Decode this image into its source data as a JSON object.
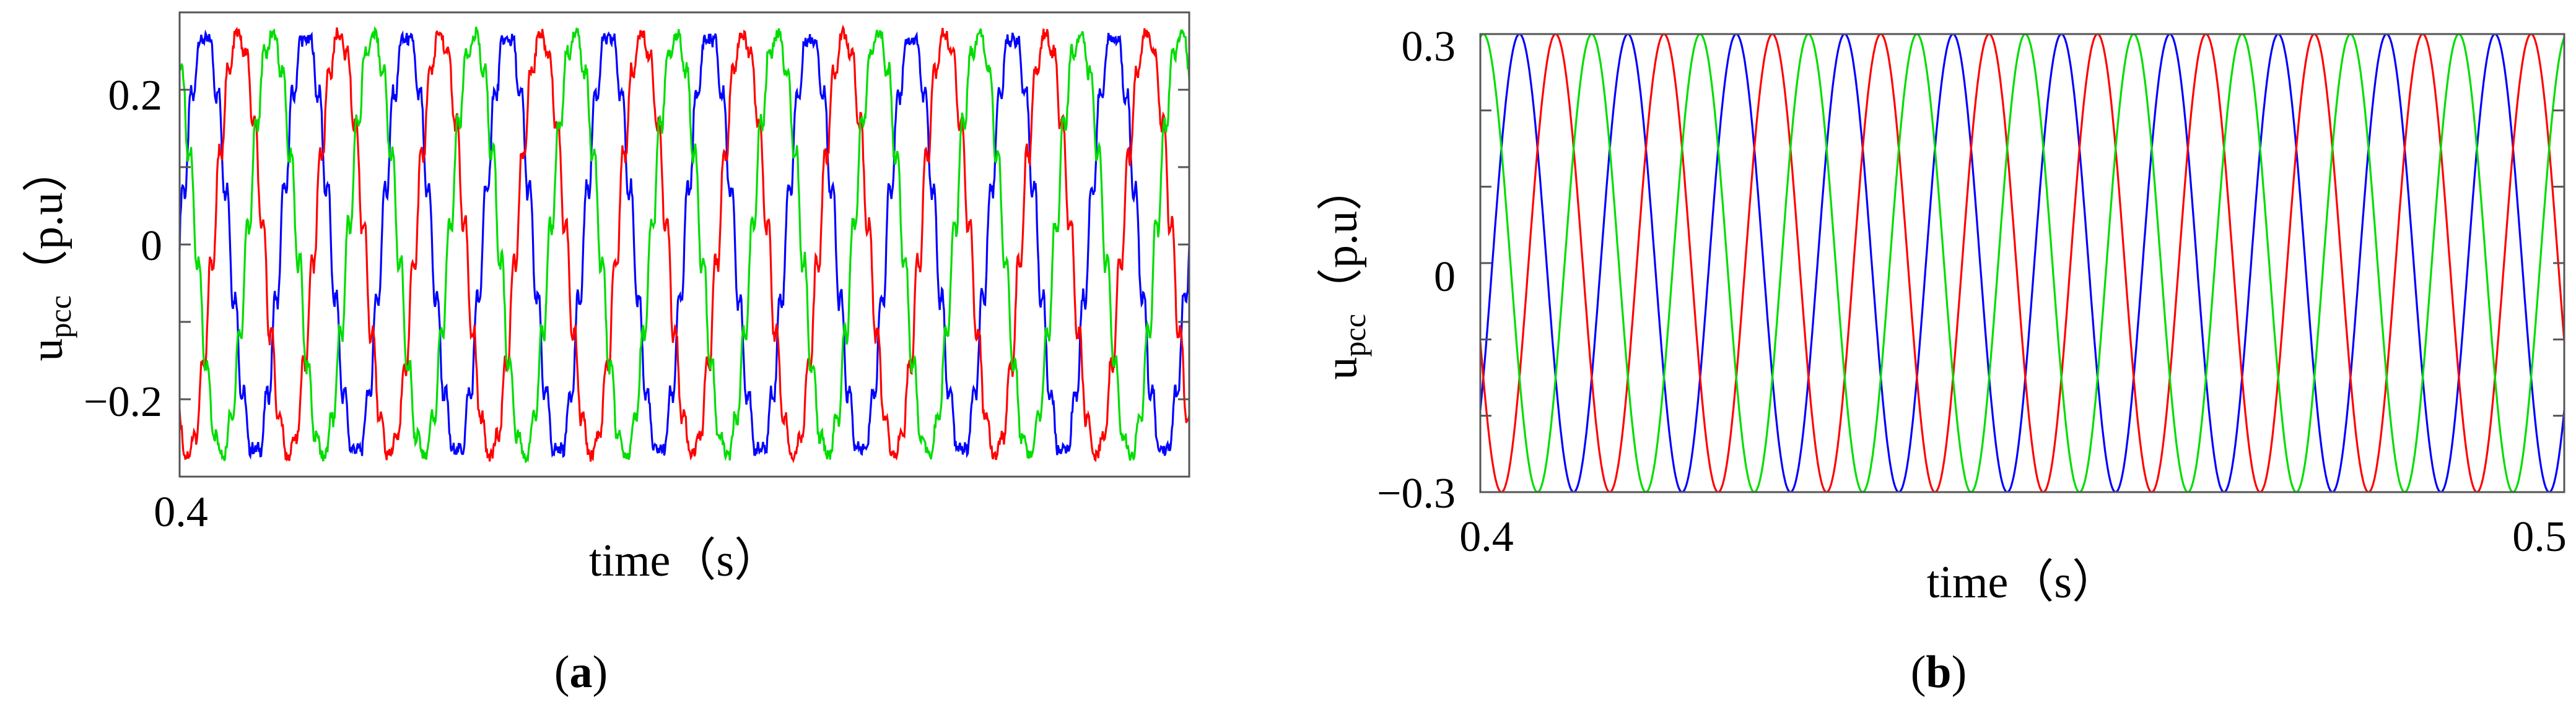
{
  "chart_data": [
    {
      "panel_label_open": "(",
      "panel_label_letter": "a",
      "panel_label_close": ")",
      "type": "line",
      "title": "",
      "ylabel_main": "u",
      "ylabel_sub": "pcc",
      "ylabel_unit": "（p.u）",
      "xlabel": "time（s）",
      "x_tick_labels": [
        "0.4"
      ],
      "y_ticks": [
        0.2,
        0,
        -0.2
      ],
      "y_tick_labels": [
        "0.2",
        "0",
        "−0.2"
      ],
      "xlim": [
        0.4,
        0.5
      ],
      "ylim": [
        -0.3,
        0.3
      ],
      "grid": false,
      "series": [
        {
          "color": "#0000ff",
          "amplitude": 0.27,
          "phase_deg": 0,
          "harmonic_ripple": 0.02
        },
        {
          "color": "#ff0000",
          "amplitude": 0.27,
          "phase_deg": -120,
          "harmonic_ripple": 0.02
        },
        {
          "color": "#00dd00",
          "amplitude": 0.27,
          "phase_deg": 120,
          "harmonic_ripple": 0.02
        }
      ],
      "frequency_hz": 100
    },
    {
      "panel_label_open": "(",
      "panel_label_letter": "b",
      "panel_label_close": ")",
      "type": "line",
      "title": "",
      "ylabel_main": "u",
      "ylabel_sub": "pcc",
      "ylabel_unit": "（p.u）",
      "xlabel": "time（s）",
      "x_tick_labels": [
        "0.4",
        "0.5"
      ],
      "y_ticks": [
        0.3,
        0,
        -0.3
      ],
      "y_tick_labels": [
        "0.3",
        "0",
        "−0.3"
      ],
      "xlim": [
        0.4,
        0.5
      ],
      "ylim": [
        -0.3,
        0.3
      ],
      "grid": false,
      "series": [
        {
          "color": "#0000ff",
          "amplitude": 0.3,
          "phase_deg": -40,
          "harmonic_ripple": 0
        },
        {
          "color": "#ff0000",
          "amplitude": 0.3,
          "phase_deg": -160,
          "harmonic_ripple": 0
        },
        {
          "color": "#00dd00",
          "amplitude": 0.3,
          "phase_deg": 80,
          "harmonic_ripple": 0
        }
      ],
      "frequency_hz": 100
    }
  ]
}
